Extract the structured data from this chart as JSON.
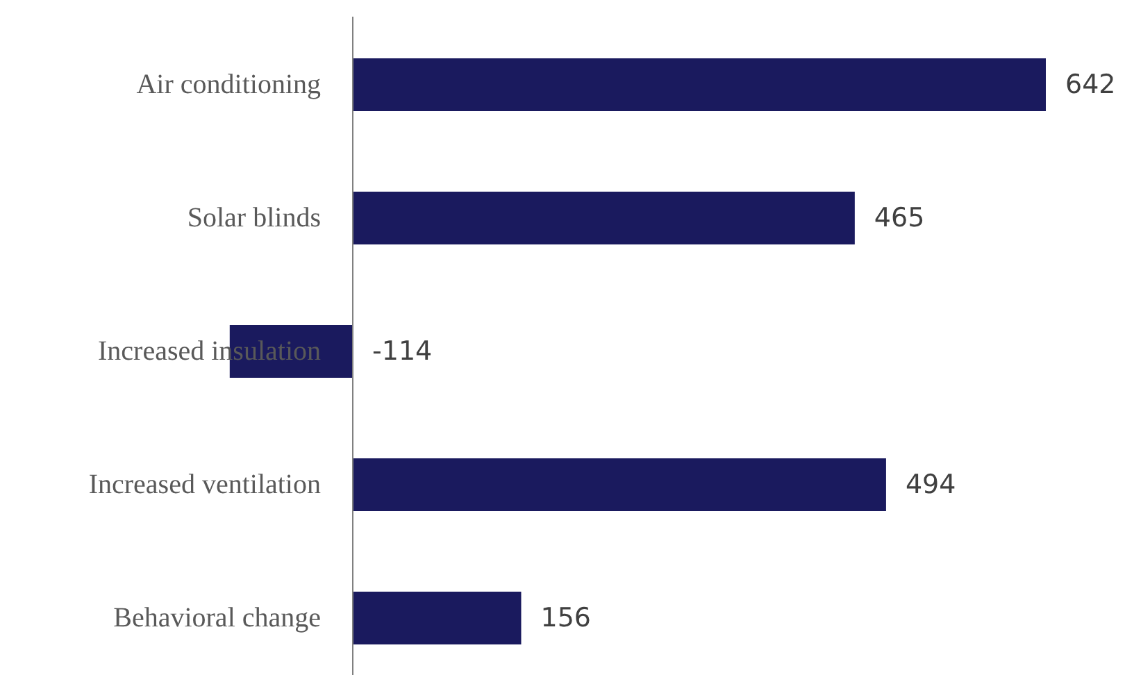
{
  "chart_data": {
    "type": "bar",
    "orientation": "horizontal",
    "data_labels": true,
    "categories": [
      "Air conditioning",
      "Solar blinds",
      "Increased insulation",
      "Increased ventilation",
      "Behavioral change"
    ],
    "values": [
      642,
      465,
      -114,
      494,
      156
    ],
    "color": "#1a1a5e"
  }
}
